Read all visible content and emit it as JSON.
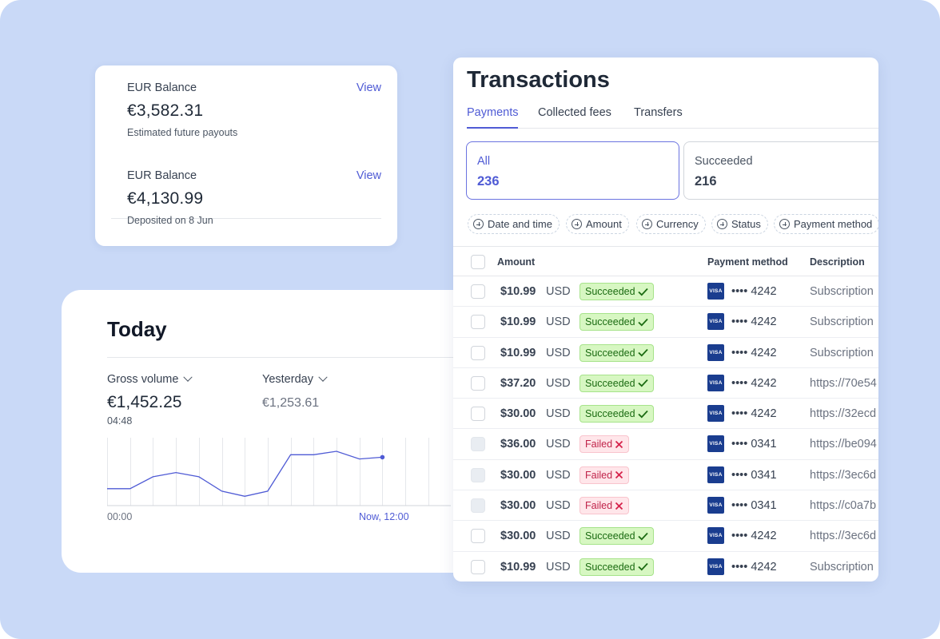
{
  "balances": [
    {
      "label": "EUR Balance",
      "view_label": "View",
      "amount": "€3,582.31",
      "subtitle": "Estimated future payouts"
    },
    {
      "label": "EUR Balance",
      "view_label": "View",
      "amount": "€4,130.99",
      "subtitle": "Deposited on 8 Jun"
    }
  ],
  "today": {
    "title": "Today",
    "gross_label": "Gross volume",
    "gross_value": "€1,452.25",
    "time": "04:48",
    "yesterday_label": "Yesterday",
    "yesterday_value": "€1,253.61",
    "axis_start": "00:00",
    "axis_end": "Now, 12:00"
  },
  "chart_data": {
    "type": "line",
    "series_values": [
      10,
      10,
      17,
      19.5,
      17,
      8.5,
      5.5,
      8.5,
      30,
      30,
      32,
      27.5,
      28.5
    ],
    "ylim": [
      0,
      40
    ],
    "grid": "vertical",
    "accent_color": "#4f5bd5"
  },
  "transactions": {
    "title": "Transactions",
    "tabs": [
      "Payments",
      "Collected fees",
      "Transfers"
    ],
    "filters": [
      {
        "label": "All",
        "count": "236"
      },
      {
        "label": "Succeeded",
        "count": "216"
      }
    ],
    "chips": [
      "Date and time",
      "Amount",
      "Currency",
      "Status",
      "Payment method"
    ],
    "columns": {
      "amount": "Amount",
      "method": "Payment method",
      "description": "Description"
    },
    "rows": [
      {
        "amount": "$10.99",
        "currency": "USD",
        "status": "Succeeded",
        "ok": true,
        "card": "•••• 4242",
        "desc": "Subscription"
      },
      {
        "amount": "$10.99",
        "currency": "USD",
        "status": "Succeeded",
        "ok": true,
        "card": "•••• 4242",
        "desc": "Subscription"
      },
      {
        "amount": "$10.99",
        "currency": "USD",
        "status": "Succeeded",
        "ok": true,
        "card": "•••• 4242",
        "desc": "Subscription"
      },
      {
        "amount": "$37.20",
        "currency": "USD",
        "status": "Succeeded",
        "ok": true,
        "card": "•••• 4242",
        "desc": "https://70e54"
      },
      {
        "amount": "$30.00",
        "currency": "USD",
        "status": "Succeeded",
        "ok": true,
        "card": "•••• 4242",
        "desc": "https://32ecd"
      },
      {
        "amount": "$36.00",
        "currency": "USD",
        "status": "Failed",
        "ok": false,
        "card": "•••• 0341",
        "desc": "https://be094"
      },
      {
        "amount": "$30.00",
        "currency": "USD",
        "status": "Failed",
        "ok": false,
        "card": "•••• 0341",
        "desc": "https://3ec6d"
      },
      {
        "amount": "$30.00",
        "currency": "USD",
        "status": "Failed",
        "ok": false,
        "card": "•••• 0341",
        "desc": "https://c0a7b"
      },
      {
        "amount": "$30.00",
        "currency": "USD",
        "status": "Succeeded",
        "ok": true,
        "card": "•••• 4242",
        "desc": "https://3ec6d"
      },
      {
        "amount": "$10.99",
        "currency": "USD",
        "status": "Succeeded",
        "ok": true,
        "card": "•••• 4242",
        "desc": "Subscription"
      }
    ],
    "card_brand": "VISA"
  }
}
